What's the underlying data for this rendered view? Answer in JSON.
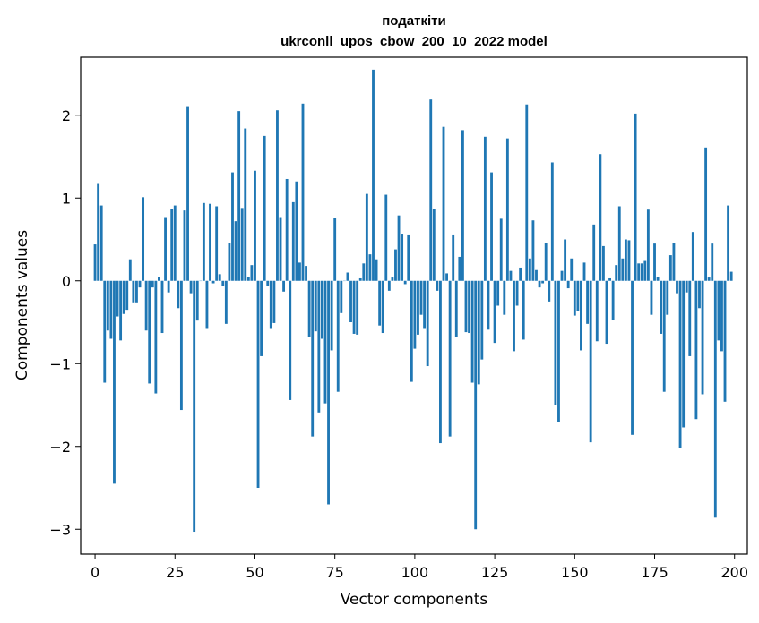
{
  "chart_data": {
    "type": "bar",
    "title": "податкіти",
    "subtitle": "ukrconll_upos_cbow_200_10_2022 model",
    "xlabel": "Vector components",
    "ylabel": "Components values",
    "xlim": [
      -4.5,
      204
    ],
    "ylim": [
      -3.3,
      2.7
    ],
    "xticks": [
      0,
      25,
      50,
      75,
      100,
      125,
      150,
      175,
      200
    ],
    "xtick_labels": [
      "0",
      "25",
      "50",
      "75",
      "100",
      "125",
      "150",
      "175",
      "200"
    ],
    "yticks": [
      -3,
      -2,
      -1,
      0,
      1,
      2
    ],
    "ytick_labels": [
      "−3",
      "−2",
      "−1",
      "0",
      "1",
      "2"
    ],
    "bar_color": "#1f77b4",
    "x": [
      0,
      1,
      2,
      3,
      4,
      5,
      6,
      7,
      8,
      9,
      10,
      11,
      12,
      13,
      14,
      15,
      16,
      17,
      18,
      19,
      20,
      21,
      22,
      23,
      24,
      25,
      26,
      27,
      28,
      29,
      30,
      31,
      32,
      33,
      34,
      35,
      36,
      37,
      38,
      39,
      40,
      41,
      42,
      43,
      44,
      45,
      46,
      47,
      48,
      49,
      50,
      51,
      52,
      53,
      54,
      55,
      56,
      57,
      58,
      59,
      60,
      61,
      62,
      63,
      64,
      65,
      66,
      67,
      68,
      69,
      70,
      71,
      72,
      73,
      74,
      75,
      76,
      77,
      78,
      79,
      80,
      81,
      82,
      83,
      84,
      85,
      86,
      87,
      88,
      89,
      90,
      91,
      92,
      93,
      94,
      95,
      96,
      97,
      98,
      99,
      100,
      101,
      102,
      103,
      104,
      105,
      106,
      107,
      108,
      109,
      110,
      111,
      112,
      113,
      114,
      115,
      116,
      117,
      118,
      119,
      120,
      121,
      122,
      123,
      124,
      125,
      126,
      127,
      128,
      129,
      130,
      131,
      132,
      133,
      134,
      135,
      136,
      137,
      138,
      139,
      140,
      141,
      142,
      143,
      144,
      145,
      146,
      147,
      148,
      149,
      150,
      151,
      152,
      153,
      154,
      155,
      156,
      157,
      158,
      159,
      160,
      161,
      162,
      163,
      164,
      165,
      166,
      167,
      168,
      169,
      170,
      171,
      172,
      173,
      174,
      175,
      176,
      177,
      178,
      179,
      180,
      181,
      182,
      183,
      184,
      185,
      186,
      187,
      188,
      189,
      190,
      191,
      192,
      193,
      194,
      195,
      196,
      197,
      198,
      199
    ],
    "values": [
      0.44,
      1.17,
      0.91,
      -1.23,
      -0.6,
      -0.7,
      -2.45,
      -0.43,
      -0.72,
      -0.4,
      -0.35,
      0.26,
      -0.26,
      -0.26,
      -0.08,
      1.01,
      -0.6,
      -1.24,
      -0.08,
      -1.36,
      0.05,
      -0.63,
      0.77,
      -0.14,
      0.87,
      0.91,
      -0.33,
      -1.56,
      0.85,
      2.11,
      -0.15,
      -3.03,
      -0.48,
      0.0,
      0.94,
      -0.57,
      0.93,
      -0.03,
      0.9,
      0.08,
      -0.06,
      -0.52,
      0.46,
      1.31,
      0.72,
      2.05,
      0.88,
      1.84,
      0.05,
      0.19,
      1.33,
      -2.5,
      -0.91,
      1.75,
      -0.06,
      -0.57,
      -0.51,
      2.06,
      0.77,
      -0.13,
      1.23,
      -1.44,
      0.95,
      1.2,
      0.22,
      2.14,
      0.18,
      -0.68,
      -1.88,
      -0.61,
      -1.59,
      -0.7,
      -1.48,
      -2.7,
      -0.84,
      0.76,
      -1.34,
      -0.39,
      0.0,
      0.1,
      -0.5,
      -0.64,
      -0.65,
      0.03,
      0.21,
      1.05,
      0.32,
      2.55,
      0.26,
      -0.54,
      -0.63,
      1.04,
      -0.12,
      0.04,
      0.38,
      0.79,
      0.57,
      -0.04,
      0.56,
      -1.22,
      -0.82,
      -0.65,
      -0.41,
      -0.57,
      -1.03,
      2.19,
      0.87,
      -0.12,
      -1.96,
      1.86,
      0.09,
      -1.88,
      0.56,
      -0.68,
      0.29,
      1.82,
      -0.62,
      -0.63,
      -1.23,
      -3.0,
      -1.25,
      -0.95,
      1.74,
      -0.59,
      1.31,
      -0.75,
      -0.3,
      0.75,
      -0.41,
      1.72,
      0.12,
      -0.85,
      -0.3,
      0.16,
      -0.71,
      2.13,
      0.27,
      0.73,
      0.13,
      -0.08,
      -0.03,
      0.46,
      -0.25,
      1.43,
      -1.5,
      -1.71,
      0.12,
      0.5,
      -0.09,
      0.27,
      -0.42,
      -0.37,
      -0.84,
      0.22,
      -0.52,
      -1.95,
      0.68,
      -0.73,
      1.53,
      0.42,
      -0.76,
      0.03,
      -0.47,
      0.19,
      0.9,
      0.27,
      0.5,
      0.49,
      -1.86,
      2.02,
      0.21,
      0.21,
      0.24,
      0.86,
      -0.41,
      0.45,
      0.05,
      -0.64,
      -1.34,
      -0.41,
      0.31,
      0.46,
      -0.15,
      -2.02,
      -1.77,
      -0.14,
      -0.91,
      0.59,
      -1.67,
      -0.33,
      -1.37,
      1.61,
      0.04,
      0.45,
      -2.86,
      -0.72,
      -0.85,
      -1.46,
      0.91,
      0.11
    ]
  }
}
